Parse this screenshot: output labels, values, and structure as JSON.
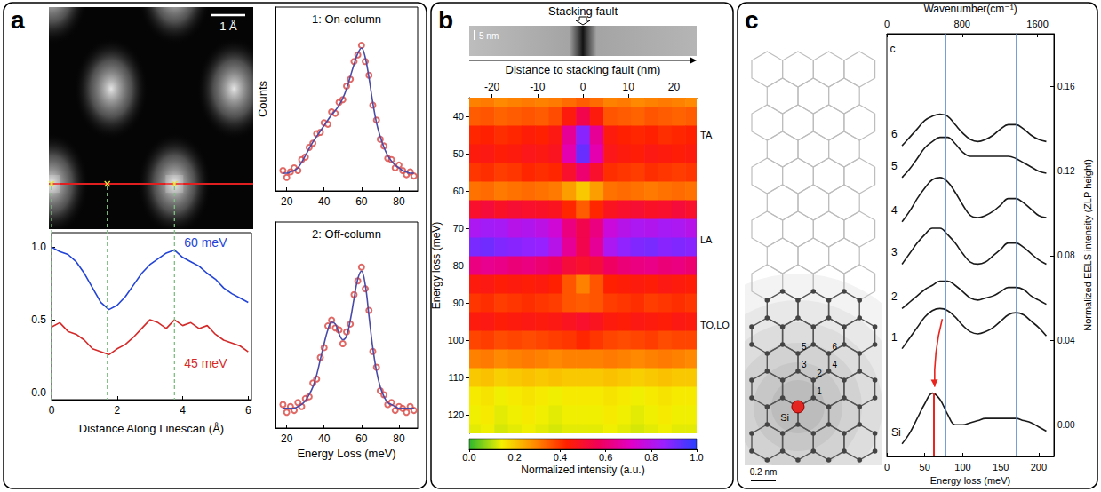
{
  "panel_letters": [
    "a",
    "b",
    "c"
  ],
  "stem_image": {
    "scale_bar": "1 Å"
  },
  "fault_image": {
    "label": "Stacking fault",
    "scale_bar": "5 nm"
  },
  "lattice": {
    "atom": "Si",
    "sites": [
      "1",
      "2",
      "3",
      "4",
      "5",
      "6"
    ],
    "scale_bar": "0.2 nm"
  },
  "chart_data": [
    {
      "type": "line",
      "xlabel": "Distance Along Linescan (Å)",
      "x": [
        0,
        0.25,
        0.5,
        0.75,
        1,
        1.25,
        1.5,
        1.75,
        2,
        2.25,
        2.5,
        2.75,
        3,
        3.25,
        3.5,
        3.75,
        4,
        4.25,
        4.5,
        4.75,
        5,
        5.25,
        5.5,
        5.75,
        6
      ],
      "series": [
        {
          "name": "60 meV",
          "color": "#2344d6",
          "label_at": [
            4.7,
            1.03
          ],
          "values": [
            1.0,
            0.97,
            0.95,
            0.9,
            0.82,
            0.72,
            0.62,
            0.57,
            0.6,
            0.66,
            0.74,
            0.82,
            0.88,
            0.92,
            0.96,
            0.98,
            0.93,
            0.9,
            0.87,
            0.82,
            0.78,
            0.72,
            0.68,
            0.65,
            0.62
          ]
        },
        {
          "name": "45 meV",
          "color": "#d42a2a",
          "label_at": [
            4.7,
            0.2
          ],
          "values": [
            0.45,
            0.48,
            0.42,
            0.4,
            0.36,
            0.3,
            0.28,
            0.26,
            0.3,
            0.33,
            0.38,
            0.44,
            0.5,
            0.48,
            0.44,
            0.5,
            0.46,
            0.48,
            0.44,
            0.46,
            0.4,
            0.36,
            0.34,
            0.32,
            0.28
          ]
        }
      ],
      "xlim": [
        0,
        6.1
      ],
      "xticks": [
        0,
        2,
        4,
        6
      ],
      "ylim": [
        -0.05,
        1.1
      ],
      "yticks": [
        {
          "value": 0,
          "label": "0.0"
        },
        {
          "value": 0.5,
          "label": "0.5"
        },
        {
          "value": 1,
          "label": "1.0"
        }
      ],
      "guides": [
        0,
        1.7,
        3.75
      ],
      "grid": false
    },
    {
      "type": "scatter",
      "title": "1: On-column",
      "ylabel": "Counts",
      "x": [
        18,
        20,
        22,
        24,
        26,
        28,
        30,
        32,
        34,
        36,
        38,
        40,
        42,
        44,
        46,
        48,
        50,
        52,
        54,
        56,
        58,
        60,
        62,
        64,
        66,
        68,
        70,
        72,
        74,
        76,
        78,
        80,
        82,
        84,
        86,
        88
      ],
      "series": [
        {
          "type": "scatter",
          "marker": "open_circle",
          "color": "#d9443f",
          "values": [
            0.1,
            0.05,
            0.09,
            0.12,
            0.1,
            0.18,
            0.2,
            0.27,
            0.3,
            0.37,
            0.38,
            0.45,
            0.44,
            0.53,
            0.52,
            0.6,
            0.62,
            0.72,
            0.77,
            0.9,
            0.95,
            1.02,
            0.9,
            0.8,
            0.58,
            0.47,
            0.33,
            0.28,
            0.19,
            0.18,
            0.12,
            0.14,
            0.1,
            0.07,
            0.09,
            0.06
          ]
        },
        {
          "type": "line",
          "color": "#4a4aa8",
          "values": [
            0.08,
            0.08,
            0.09,
            0.1,
            0.12,
            0.16,
            0.21,
            0.26,
            0.31,
            0.35,
            0.39,
            0.43,
            0.47,
            0.51,
            0.54,
            0.58,
            0.63,
            0.7,
            0.79,
            0.88,
            0.96,
            1.0,
            0.93,
            0.78,
            0.6,
            0.45,
            0.35,
            0.27,
            0.21,
            0.17,
            0.14,
            0.12,
            0.1,
            0.09,
            0.08,
            0.08
          ]
        }
      ],
      "xlim": [
        14,
        90
      ],
      "xticks": [
        20,
        40,
        60,
        80
      ],
      "ylim": [
        -0.05,
        1.3
      ],
      "tick_labels": "x",
      "grid": false
    },
    {
      "type": "scatter",
      "title": "2: Off-column",
      "xlabel": "Energy Loss (meV)",
      "x": [
        18,
        20,
        22,
        24,
        26,
        28,
        30,
        32,
        34,
        36,
        38,
        40,
        42,
        44,
        46,
        48,
        50,
        52,
        54,
        56,
        58,
        60,
        62,
        64,
        66,
        68,
        70,
        72,
        74,
        76,
        78,
        80,
        82,
        84,
        86,
        88
      ],
      "series": [
        {
          "type": "scatter",
          "marker": "open_circle",
          "color": "#d9443f",
          "values": [
            0.07,
            0.03,
            0.06,
            0.04,
            0.08,
            0.06,
            0.1,
            0.11,
            0.18,
            0.2,
            0.31,
            0.36,
            0.47,
            0.5,
            0.46,
            0.45,
            0.38,
            0.44,
            0.48,
            0.63,
            0.7,
            0.77,
            0.66,
            0.55,
            0.34,
            0.26,
            0.14,
            0.12,
            0.07,
            0.08,
            0.04,
            0.06,
            0.05,
            0.03,
            0.06,
            0.04
          ]
        },
        {
          "type": "line",
          "color": "#4a4aa8",
          "values": [
            0.05,
            0.05,
            0.05,
            0.05,
            0.06,
            0.07,
            0.09,
            0.12,
            0.16,
            0.22,
            0.3,
            0.38,
            0.45,
            0.49,
            0.48,
            0.43,
            0.4,
            0.42,
            0.5,
            0.61,
            0.71,
            0.75,
            0.68,
            0.52,
            0.36,
            0.24,
            0.16,
            0.11,
            0.08,
            0.07,
            0.06,
            0.05,
            0.05,
            0.05,
            0.05,
            0.05
          ]
        }
      ],
      "xlim": [
        14,
        90
      ],
      "xticks": [
        20,
        40,
        60,
        80
      ],
      "ylim": [
        -0.05,
        1.0
      ],
      "tick_labels": "x",
      "grid": false
    },
    {
      "type": "heatmap",
      "xlabel": "Distance to stacking fault (nm)",
      "ylabel": "Energy loss (meV)",
      "x": [
        -24,
        -21,
        -18,
        -15,
        -12,
        -9,
        -6,
        -3,
        0,
        3,
        6,
        9,
        12,
        15,
        18,
        21,
        24
      ],
      "y": [
        35,
        40,
        45,
        50,
        55,
        60,
        65,
        70,
        75,
        80,
        85,
        90,
        95,
        100,
        105,
        110,
        115,
        120,
        125
      ],
      "cells": [
        [
          0.3,
          0.31,
          0.29,
          0.3,
          0.31,
          0.3,
          0.31,
          0.33,
          0.35,
          0.33,
          0.3,
          0.31,
          0.29,
          0.3,
          0.31,
          0.3,
          0.29
        ],
        [
          0.35,
          0.36,
          0.34,
          0.35,
          0.36,
          0.35,
          0.37,
          0.45,
          0.55,
          0.45,
          0.36,
          0.35,
          0.34,
          0.36,
          0.35,
          0.34,
          0.35
        ],
        [
          0.42,
          0.43,
          0.41,
          0.42,
          0.44,
          0.43,
          0.46,
          0.65,
          0.88,
          0.65,
          0.45,
          0.43,
          0.42,
          0.43,
          0.41,
          0.42,
          0.43
        ],
        [
          0.45,
          0.46,
          0.44,
          0.45,
          0.47,
          0.46,
          0.48,
          0.68,
          0.92,
          0.68,
          0.47,
          0.45,
          0.44,
          0.46,
          0.45,
          0.44,
          0.45
        ],
        [
          0.4,
          0.41,
          0.39,
          0.4,
          0.42,
          0.41,
          0.42,
          0.5,
          0.6,
          0.5,
          0.41,
          0.4,
          0.39,
          0.41,
          0.4,
          0.39,
          0.4
        ],
        [
          0.32,
          0.33,
          0.31,
          0.32,
          0.33,
          0.32,
          0.31,
          0.26,
          0.2,
          0.26,
          0.32,
          0.33,
          0.32,
          0.31,
          0.32,
          0.33,
          0.32
        ],
        [
          0.5,
          0.52,
          0.49,
          0.51,
          0.5,
          0.49,
          0.48,
          0.42,
          0.35,
          0.42,
          0.48,
          0.5,
          0.51,
          0.49,
          0.5,
          0.52,
          0.5
        ],
        [
          0.82,
          0.84,
          0.83,
          0.8,
          0.81,
          0.79,
          0.75,
          0.62,
          0.55,
          0.62,
          0.76,
          0.8,
          0.82,
          0.81,
          0.83,
          0.82,
          0.8
        ],
        [
          0.9,
          0.91,
          0.89,
          0.88,
          0.87,
          0.86,
          0.8,
          0.65,
          0.55,
          0.65,
          0.82,
          0.87,
          0.89,
          0.9,
          0.88,
          0.89,
          0.88
        ],
        [
          0.62,
          0.64,
          0.63,
          0.61,
          0.62,
          0.6,
          0.58,
          0.52,
          0.5,
          0.52,
          0.58,
          0.61,
          0.62,
          0.63,
          0.61,
          0.62,
          0.6
        ],
        [
          0.45,
          0.46,
          0.44,
          0.45,
          0.44,
          0.45,
          0.43,
          0.36,
          0.3,
          0.36,
          0.43,
          0.44,
          0.45,
          0.44,
          0.46,
          0.45,
          0.44
        ],
        [
          0.4,
          0.41,
          0.39,
          0.4,
          0.41,
          0.4,
          0.39,
          0.36,
          0.35,
          0.36,
          0.39,
          0.4,
          0.41,
          0.39,
          0.4,
          0.41,
          0.4
        ],
        [
          0.45,
          0.46,
          0.44,
          0.45,
          0.46,
          0.45,
          0.46,
          0.48,
          0.5,
          0.48,
          0.45,
          0.44,
          0.46,
          0.45,
          0.44,
          0.46,
          0.45
        ],
        [
          0.38,
          0.39,
          0.37,
          0.38,
          0.37,
          0.38,
          0.39,
          0.4,
          0.42,
          0.4,
          0.38,
          0.37,
          0.38,
          0.39,
          0.37,
          0.38,
          0.38
        ],
        [
          0.3,
          0.31,
          0.29,
          0.3,
          0.31,
          0.3,
          0.29,
          0.3,
          0.3,
          0.3,
          0.31,
          0.3,
          0.29,
          0.3,
          0.31,
          0.3,
          0.29
        ],
        [
          0.2,
          0.21,
          0.19,
          0.2,
          0.21,
          0.2,
          0.21,
          0.2,
          0.2,
          0.2,
          0.21,
          0.2,
          0.19,
          0.2,
          0.21,
          0.2,
          0.2
        ],
        [
          0.15,
          0.16,
          0.14,
          0.15,
          0.16,
          0.15,
          0.14,
          0.15,
          0.15,
          0.15,
          0.16,
          0.15,
          0.14,
          0.15,
          0.16,
          0.15,
          0.15
        ],
        [
          0.14,
          0.15,
          0.13,
          0.14,
          0.15,
          0.14,
          0.13,
          0.14,
          0.14,
          0.14,
          0.15,
          0.14,
          0.13,
          0.14,
          0.15,
          0.14,
          0.14
        ],
        [
          0.13,
          0.14,
          0.12,
          0.13,
          0.14,
          0.13,
          0.12,
          0.13,
          0.13,
          0.13,
          0.14,
          0.13,
          0.12,
          0.13,
          0.14,
          0.13,
          0.13
        ]
      ],
      "xlim": [
        -25,
        25
      ],
      "xticks": [
        -20,
        -10,
        0,
        10,
        20
      ],
      "ylim": [
        125,
        35
      ],
      "yticks": [
        40,
        50,
        60,
        70,
        80,
        90,
        100,
        110,
        120
      ],
      "colorbar": {
        "label": "Normalized intensity (a.u.)",
        "range": [
          0,
          1
        ],
        "ticks": [
          {
            "value": 0,
            "label": "0.0"
          },
          {
            "value": 0.2,
            "label": "0.2"
          },
          {
            "value": 0.4,
            "label": "0.4"
          },
          {
            "value": 0.6,
            "label": "0.6"
          },
          {
            "value": 0.8,
            "label": "0.8"
          },
          {
            "value": 1,
            "label": "1.0"
          }
        ]
      },
      "annotations": [
        {
          "text": "TA",
          "y": 45
        },
        {
          "text": "LA",
          "y": 73
        },
        {
          "text": "TO,LO",
          "y": 96
        }
      ],
      "grid": false
    },
    {
      "type": "line",
      "xlabel": "Energy loss (meV)",
      "x2label": "Wavenumber(cm⁻¹)",
      "ylabel": "Normalized EELS intensity (ZLP height)",
      "x": [
        20,
        30,
        40,
        50,
        60,
        70,
        80,
        90,
        100,
        110,
        120,
        130,
        140,
        150,
        160,
        170,
        180,
        190,
        200,
        210
      ],
      "series": [
        {
          "name": "Si",
          "color": "#1a1a1a",
          "values": [
            -0.009,
            -0.004,
            0.003,
            0.01,
            0.015,
            0.012,
            0.005,
            0.0,
            0.0,
            0.001,
            0.002,
            0.003,
            0.003,
            0.003,
            0.003,
            0.003,
            0.002,
            0.001,
            -0.001,
            -0.003
          ]
        },
        {
          "name": "1",
          "color": "#1a1a1a",
          "values": [
            0.036,
            0.041,
            0.046,
            0.051,
            0.054,
            0.055,
            0.054,
            0.051,
            0.047,
            0.044,
            0.043,
            0.044,
            0.046,
            0.049,
            0.052,
            0.053,
            0.052,
            0.049,
            0.046,
            0.042
          ]
        },
        {
          "name": "2",
          "color": "#1a1a1a",
          "values": [
            0.055,
            0.058,
            0.061,
            0.064,
            0.066,
            0.068,
            0.068,
            0.066,
            0.063,
            0.06,
            0.059,
            0.06,
            0.061,
            0.063,
            0.065,
            0.065,
            0.064,
            0.061,
            0.059,
            0.057
          ]
        },
        {
          "name": "3",
          "color": "#1a1a1a",
          "values": [
            0.076,
            0.081,
            0.086,
            0.09,
            0.093,
            0.093,
            0.09,
            0.086,
            0.081,
            0.077,
            0.076,
            0.077,
            0.08,
            0.083,
            0.086,
            0.086,
            0.084,
            0.081,
            0.078,
            0.076
          ]
        },
        {
          "name": "4",
          "color": "#1a1a1a",
          "values": [
            0.096,
            0.101,
            0.107,
            0.112,
            0.116,
            0.117,
            0.115,
            0.11,
            0.104,
            0.099,
            0.098,
            0.099,
            0.101,
            0.104,
            0.107,
            0.107,
            0.105,
            0.102,
            0.099,
            0.098
          ]
        },
        {
          "name": "5",
          "color": "#1a1a1a",
          "values": [
            0.117,
            0.121,
            0.126,
            0.131,
            0.134,
            0.136,
            0.136,
            0.133,
            0.129,
            0.127,
            0.127,
            0.127,
            0.127,
            0.127,
            0.127,
            0.126,
            0.124,
            0.122,
            0.12,
            0.119
          ]
        },
        {
          "name": "6",
          "color": "#1a1a1a",
          "values": [
            0.132,
            0.136,
            0.14,
            0.144,
            0.146,
            0.147,
            0.146,
            0.142,
            0.138,
            0.135,
            0.134,
            0.135,
            0.137,
            0.14,
            0.142,
            0.142,
            0.14,
            0.137,
            0.135,
            0.134
          ]
        }
      ],
      "xlim": [
        0,
        220
      ],
      "xticks": [
        0,
        50,
        100,
        150,
        200
      ],
      "x2lim": [
        0,
        1774
      ],
      "x2ticks": [
        0,
        800,
        1600
      ],
      "ylim": [
        -0.015,
        0.185
      ],
      "yticks": [
        {
          "value": 0,
          "label": "0.00"
        },
        {
          "value": 0.04,
          "label": "0.04"
        },
        {
          "value": 0.08,
          "label": "0.08"
        },
        {
          "value": 0.12,
          "label": "0.12"
        },
        {
          "value": 0.16,
          "label": "0.16"
        }
      ],
      "vlines": [
        {
          "x": 77,
          "color": "#4d7cc9"
        },
        {
          "x": 170,
          "color": "#4d7cc9"
        }
      ],
      "marker_line": {
        "x": 62,
        "y": [
          -0.015,
          0.015
        ],
        "color": "#e8251f"
      },
      "arrow": {
        "from": [
          73,
          0.05
        ],
        "to": [
          63,
          0.018
        ],
        "color": "#e8251f"
      },
      "annotations": [
        {
          "text": "c",
          "x": 4,
          "y": 0.178
        }
      ],
      "grid": false
    }
  ]
}
